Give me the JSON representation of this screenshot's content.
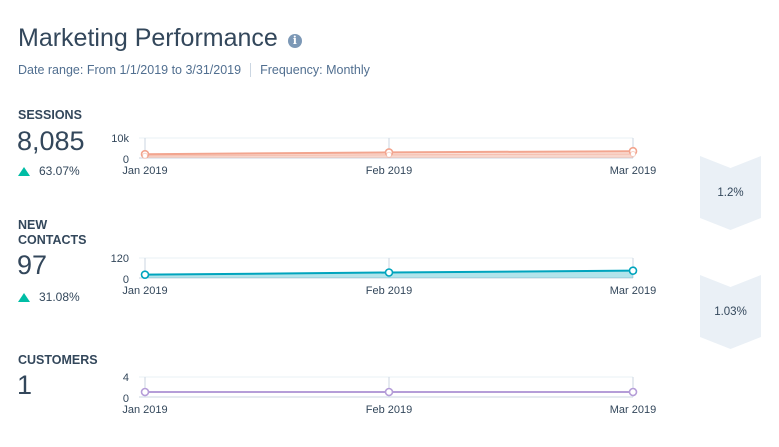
{
  "header": {
    "title": "Marketing Performance",
    "info_icon": "info-icon",
    "date_range_label": "Date range:",
    "date_range_value": "From 1/1/2019 to 3/31/2019",
    "frequency_label": "Frequency:",
    "frequency_value": "Monthly"
  },
  "metrics": [
    {
      "label": "SESSIONS",
      "value": "8,085",
      "change": "63.07%"
    },
    {
      "label": "NEW CONTACTS",
      "value": "97",
      "change": "31.08%"
    },
    {
      "label": "CUSTOMERS",
      "value": "1",
      "change": ""
    }
  ],
  "conversions": [
    {
      "value": "1.2%"
    },
    {
      "value": "1.03%"
    }
  ],
  "colors": {
    "sessions": "#f2a58f",
    "contacts": "#00a4bd",
    "customers": "#b59dd8",
    "up": "#00bda5"
  },
  "chart_data": [
    {
      "type": "area",
      "series_key": "sessions",
      "x": [
        "Jan 2019",
        "Feb 2019",
        "Mar 2019"
      ],
      "y_ticks": [
        "10k",
        "0"
      ],
      "ylim": [
        0,
        10000
      ],
      "series": [
        {
          "values": [
            1900,
            2800,
            3400
          ]
        },
        {
          "values": [
            1100,
            1600,
            2000
          ]
        }
      ]
    },
    {
      "type": "area",
      "series_key": "contacts",
      "x": [
        "Jan 2019",
        "Feb 2019",
        "Mar 2019"
      ],
      "y_ticks": [
        "120",
        "0"
      ],
      "ylim": [
        0,
        120
      ],
      "series": [
        {
          "values": [
            20,
            33,
            44
          ]
        }
      ]
    },
    {
      "type": "line",
      "series_key": "customers",
      "x": [
        "Jan 2019",
        "Feb 2019",
        "Mar 2019"
      ],
      "y_ticks": [
        "4",
        "0"
      ],
      "ylim": [
        0,
        4
      ],
      "series": [
        {
          "values": [
            1,
            1,
            1
          ]
        }
      ]
    }
  ]
}
